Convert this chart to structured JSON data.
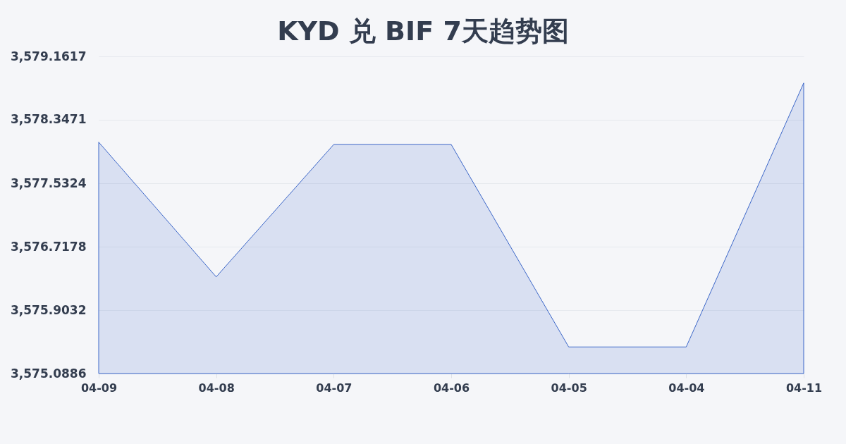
{
  "chart_data": {
    "type": "area",
    "title": "KYD 兑 BIF 7天趋势图",
    "categories": [
      "04-09",
      "04-08",
      "04-07",
      "04-06",
      "04-05",
      "04-04",
      "04-11"
    ],
    "series": [
      {
        "color": "#3b66c8",
        "values": [
          3578.06,
          3576.33,
          3578.03,
          3578.03,
          3575.43,
          3575.43,
          3578.82
        ]
      }
    ],
    "ylim": [
      3575.0886,
      3579.1617
    ],
    "yticks": [
      {
        "value": 3575.0886,
        "label": "3,575.0886"
      },
      {
        "value": 3575.9032,
        "label": "3,575.9032"
      },
      {
        "value": 3576.7178,
        "label": "3,576.7178"
      },
      {
        "value": 3577.5324,
        "label": "3,577.5324"
      },
      {
        "value": 3578.3471,
        "label": "3,578.3471"
      },
      {
        "value": 3579.1617,
        "label": "3,579.1617"
      }
    ],
    "grid": "y"
  }
}
